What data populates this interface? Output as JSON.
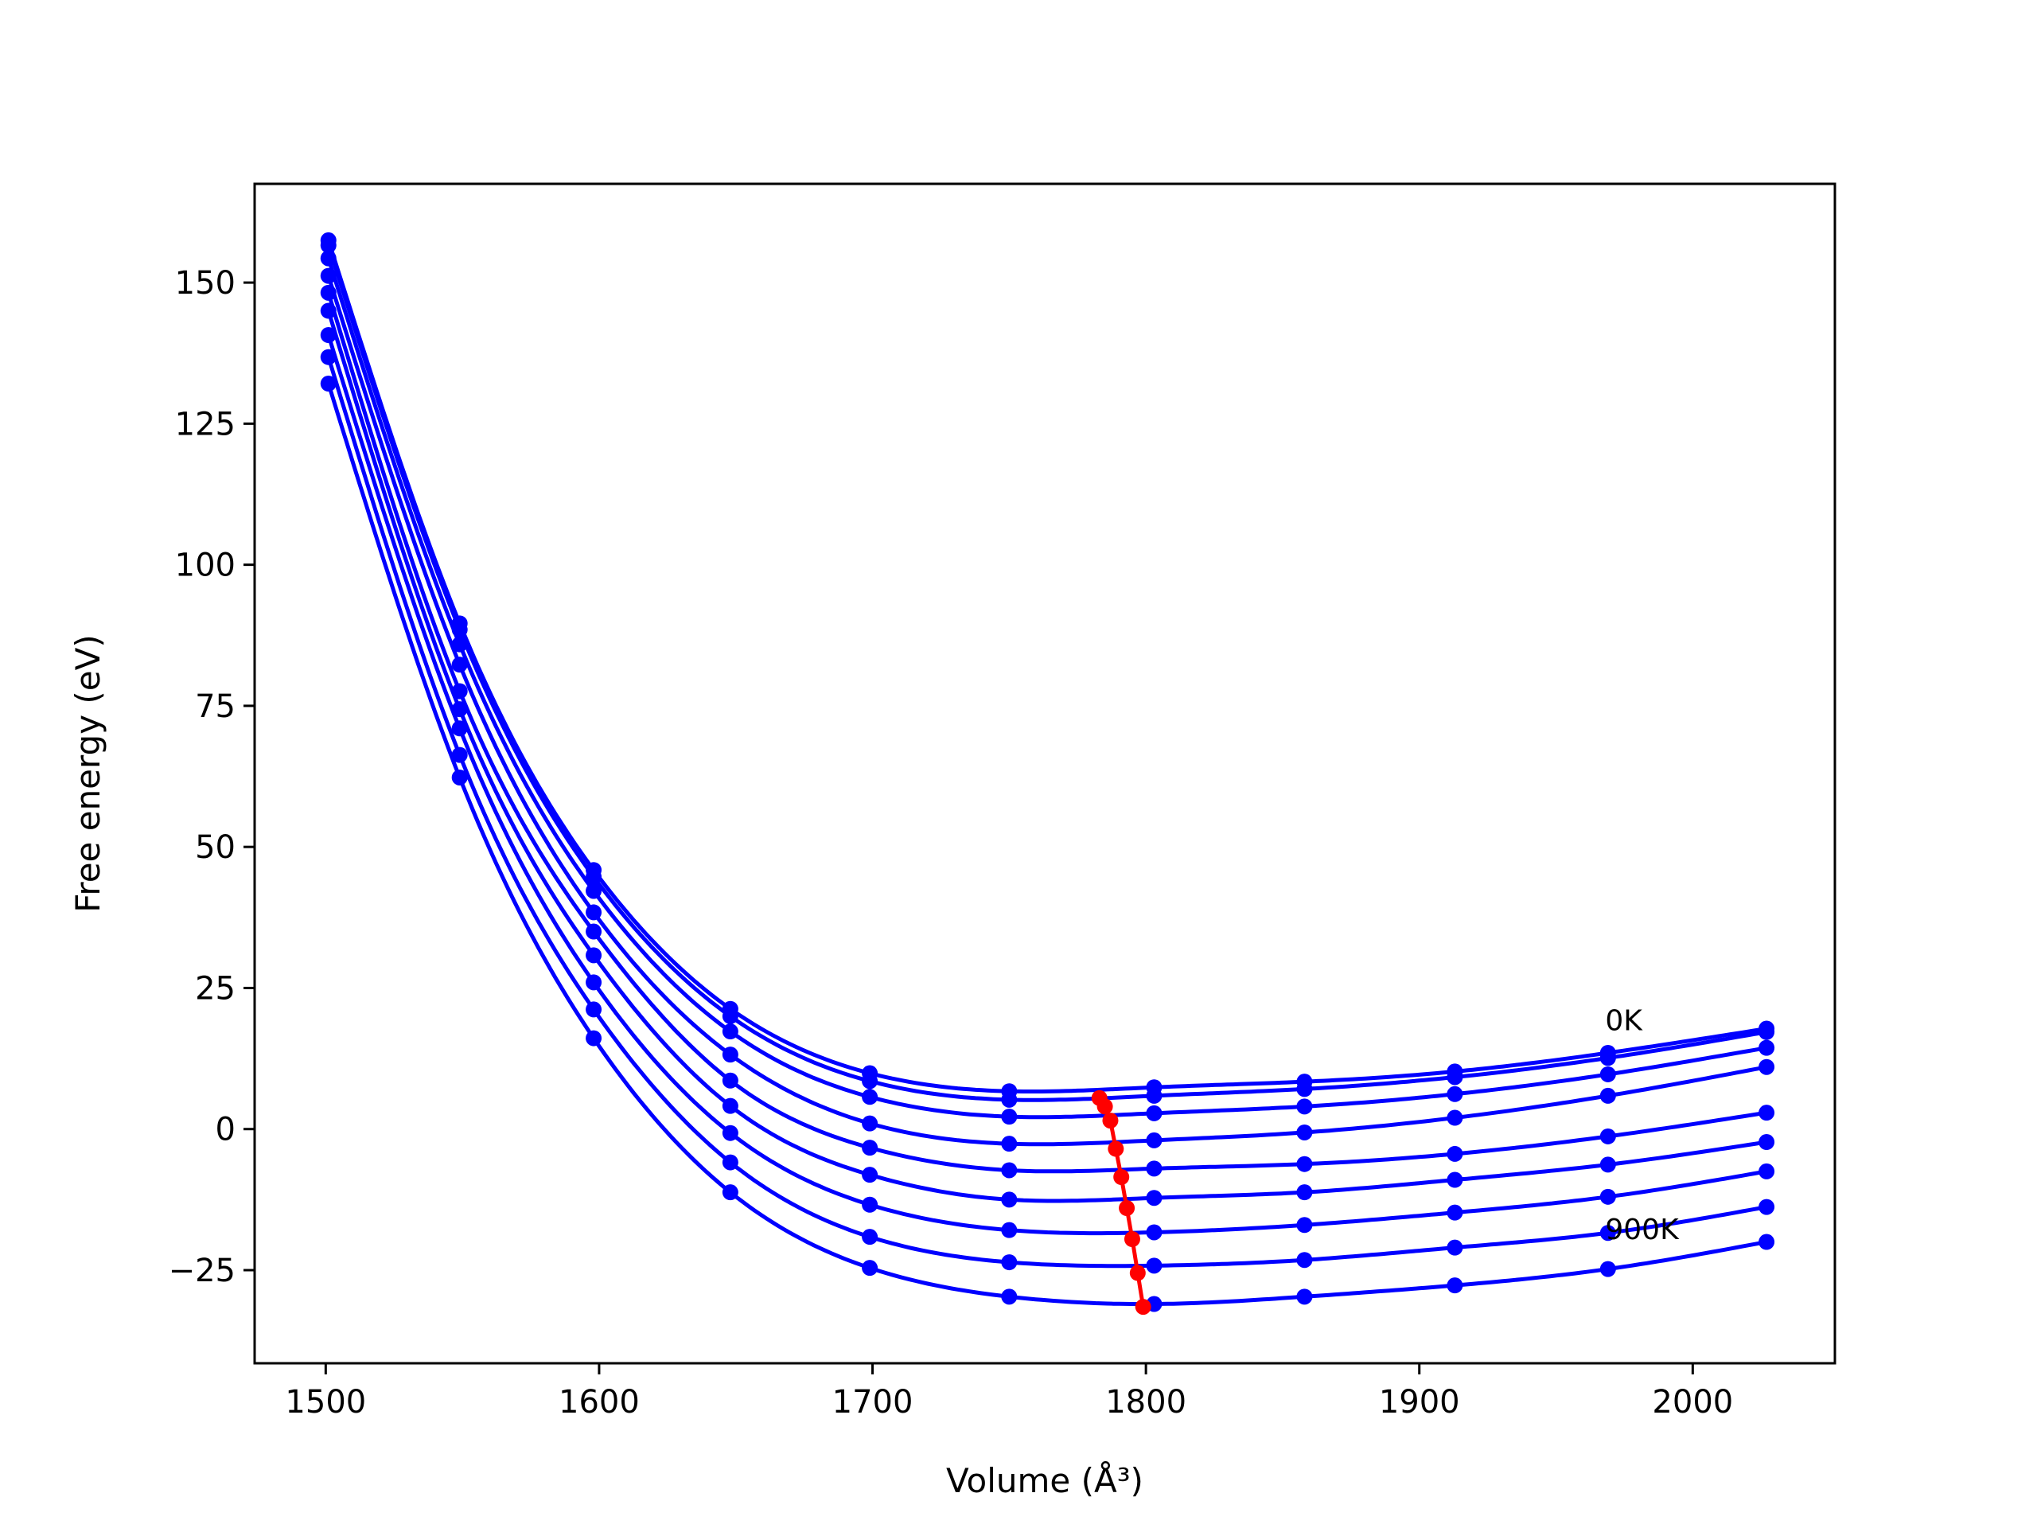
{
  "chart_data": {
    "type": "line",
    "xlabel": "Volume (Å³)",
    "ylabel": "Free energy (eV)",
    "xlim": [
      1474,
      2052
    ],
    "ylim": [
      -41.5,
      167.5
    ],
    "x_ticks": [
      1500,
      1600,
      1700,
      1800,
      1900,
      2000
    ],
    "y_ticks": [
      -25,
      0,
      25,
      50,
      75,
      100,
      125,
      150
    ],
    "x_tick_labels": [
      "1500",
      "1600",
      "1700",
      "1800",
      "1900",
      "2000"
    ],
    "y_tick_labels": [
      "−25",
      "0",
      "25",
      "50",
      "75",
      "100",
      "125",
      "150"
    ],
    "grid": false,
    "legend": "none",
    "annotations": [
      {
        "text": "0K",
        "x": 1968,
        "y": 17.5
      },
      {
        "text": "900K",
        "x": 1968,
        "y": -19.5
      }
    ],
    "curve_color": "#0000ff",
    "min_color": "#ff0000",
    "sample_volumes": [
      1501,
      1549,
      1598,
      1648,
      1699,
      1750,
      1803,
      1858,
      1913,
      1969,
      2027
    ],
    "series": [
      {
        "values": [
          157.5,
          89.6,
          45.9,
          21.3,
          9.9,
          6.7,
          7.4,
          8.4,
          10.2,
          13.5,
          17.8
        ],
        "min_volume": 1783,
        "min_value": 5.5
      },
      {
        "values": [
          156.6,
          88.5,
          44.7,
          20.0,
          8.5,
          5.2,
          5.9,
          7.1,
          9.2,
          12.6,
          17.2
        ],
        "min_volume": 1785,
        "min_value": 4.0
      },
      {
        "values": [
          154.3,
          85.9,
          42.2,
          17.3,
          5.7,
          2.2,
          2.8,
          4.0,
          6.2,
          9.7,
          14.4
        ],
        "min_volume": 1787,
        "min_value": 1.5
      },
      {
        "values": [
          151.2,
          82.3,
          38.4,
          13.2,
          1.0,
          -2.6,
          -2.0,
          -0.6,
          2.0,
          5.9,
          11.0
        ],
        "min_volume": 1789,
        "min_value": -3.5
      },
      {
        "values": [
          148.2,
          77.6,
          35.0,
          8.6,
          -3.3,
          -7.3,
          -7.0,
          -6.2,
          -4.4,
          -1.3,
          2.9
        ],
        "min_volume": 1791,
        "min_value": -8.5
      },
      {
        "values": [
          145.0,
          74.4,
          30.8,
          4.1,
          -8.1,
          -12.5,
          -12.2,
          -11.2,
          -9.0,
          -6.3,
          -2.3
        ],
        "min_volume": 1793,
        "min_value": -14.0
      },
      {
        "values": [
          140.7,
          71.0,
          26.0,
          -0.7,
          -13.4,
          -17.9,
          -18.3,
          -17.0,
          -14.8,
          -12.0,
          -7.5
        ],
        "min_volume": 1795,
        "min_value": -19.5
      },
      {
        "values": [
          136.8,
          66.3,
          21.2,
          -5.9,
          -19.1,
          -23.6,
          -24.2,
          -23.2,
          -21.0,
          -18.4,
          -13.8
        ],
        "min_volume": 1797,
        "min_value": -25.5
      },
      {
        "values": [
          132.1,
          62.3,
          16.1,
          -11.2,
          -24.6,
          -29.7,
          -31.0,
          -29.7,
          -27.7,
          -24.8,
          -20.0
        ],
        "min_volume": 1799,
        "min_value": -31.5
      }
    ]
  }
}
